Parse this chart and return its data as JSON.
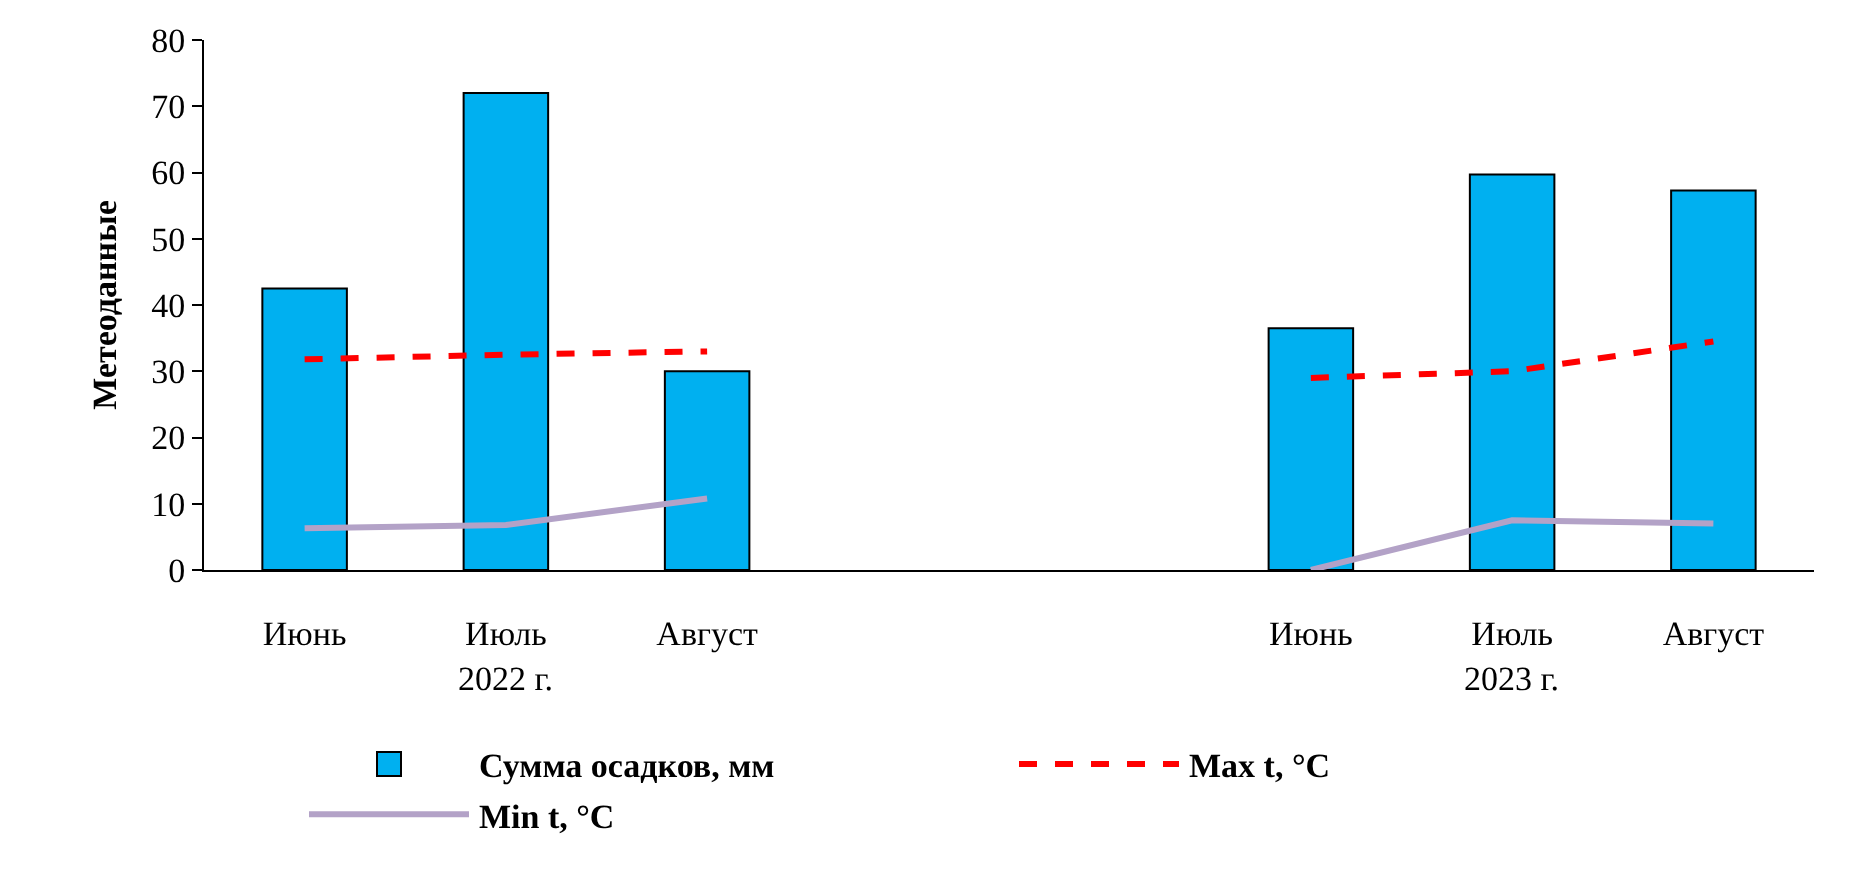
{
  "chart_data": {
    "type": "bar",
    "ylabel": "Метеоданные",
    "categories": [
      "Июнь",
      "Июль",
      "Август",
      null,
      null,
      "Июнь",
      "Июль",
      "Август"
    ],
    "annotations": [
      "2022 г.",
      "2023 г."
    ],
    "series": [
      {
        "name": "Сумма осадков, мм",
        "color": "#00b0f0",
        "values": [
          42.5,
          72,
          30,
          null,
          null,
          36.5,
          59.7,
          57.3
        ]
      },
      {
        "name": "Max t, °C",
        "type": "line",
        "color": "#ff0000",
        "line_style": "dashed",
        "values": [
          31.8,
          32.5,
          33,
          null,
          null,
          29,
          30,
          34.5
        ]
      },
      {
        "name": "Min t, °C",
        "type": "line",
        "color": "#b3a2c7",
        "line_style": "solid",
        "values": [
          6.3,
          6.8,
          10.8,
          null,
          null,
          0,
          7.5,
          7
        ]
      }
    ],
    "ylim": [
      0,
      80
    ],
    "yticks": [
      0,
      10,
      20,
      30,
      40,
      50,
      60,
      70,
      80
    ],
    "grid": false,
    "legend": "bottom",
    "marker": "none"
  }
}
